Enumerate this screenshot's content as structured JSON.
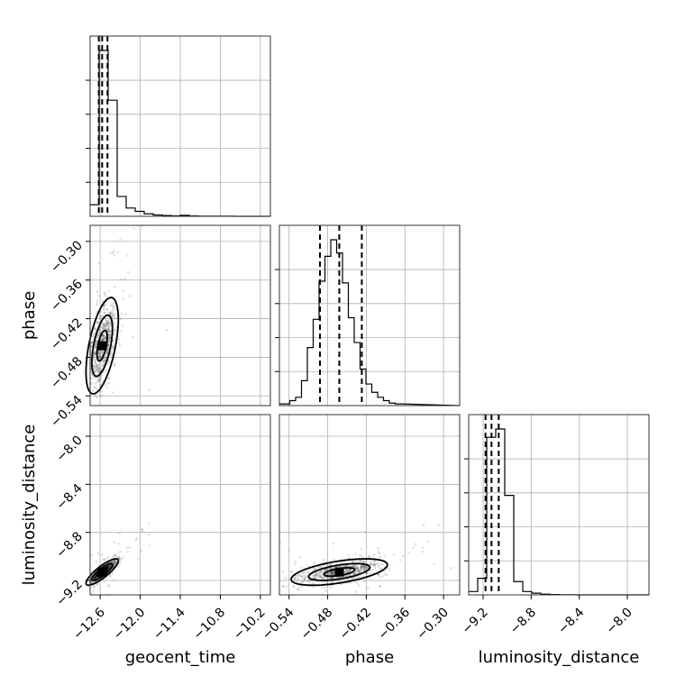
{
  "chart_data": {
    "type": "corner",
    "parameters": [
      {
        "name": "geocent_time",
        "label": "geocent_time",
        "range": [
          -12.75,
          -10.05
        ],
        "ticks": [
          -12.6,
          -12.0,
          -11.4,
          -10.8,
          -10.2
        ],
        "tick_labels": [
          "−12.6",
          "−12.0",
          "−11.4",
          "−10.8",
          "−10.2"
        ],
        "mean": -12.57,
        "std": 0.11,
        "quantiles": [
          -12.62,
          -12.57,
          -12.49
        ]
      },
      {
        "name": "phase",
        "label": "phase",
        "range": [
          -0.555,
          -0.275
        ],
        "ticks": [
          -0.54,
          -0.48,
          -0.42,
          -0.36,
          -0.3
        ],
        "tick_labels": [
          "−0.54",
          "−0.48",
          "−0.42",
          "−0.36",
          "−0.30"
        ],
        "mean": -0.462,
        "std": 0.034,
        "quantiles": [
          -0.492,
          -0.462,
          -0.427
        ]
      },
      {
        "name": "luminosity_distance",
        "label": "luminosity_distance",
        "range": [
          -9.32,
          -7.82
        ],
        "ticks": [
          -9.2,
          -8.8,
          -8.4,
          -8.0
        ],
        "tick_labels": [
          "−9.2",
          "−8.8",
          "−8.4",
          "−8.0"
        ],
        "mean": -9.13,
        "std": 0.05,
        "quantiles": [
          -9.18,
          -9.13,
          -9.07
        ]
      }
    ],
    "histograms": {
      "geocent_time": {
        "edges_start": -12.75,
        "bin_width": 0.135,
        "counts": [
          7,
          100,
          70,
          12,
          5,
          3,
          1.5,
          0.8,
          0.5,
          0.3,
          0.6,
          0.2,
          0.1,
          0.1,
          0.05,
          0.05,
          0.02,
          0.02,
          0.01,
          0.01
        ]
      },
      "phase": {
        "edges_start": -0.548,
        "bin_width": 0.0091,
        "counts": [
          1,
          3,
          5,
          15,
          35,
          52,
          75,
          90,
          100,
          92,
          74,
          53,
          38,
          22,
          13,
          8,
          5,
          3,
          1.5,
          1
        ]
      },
      "luminosity_distance": {
        "edges_start": -9.32,
        "bin_width": 0.075,
        "counts": [
          2,
          10,
          95,
          100,
          60,
          8,
          2,
          1,
          0.4,
          0.2,
          0.1,
          0.05,
          0.02,
          0.01,
          0,
          0,
          0,
          0,
          0,
          0
        ]
      }
    },
    "contour_levels": 3,
    "grid": true
  },
  "axes": {
    "x_titles": [
      "geocent_time",
      "phase",
      "luminosity_distance"
    ],
    "y_titles": [
      "phase",
      "luminosity_distance"
    ]
  }
}
